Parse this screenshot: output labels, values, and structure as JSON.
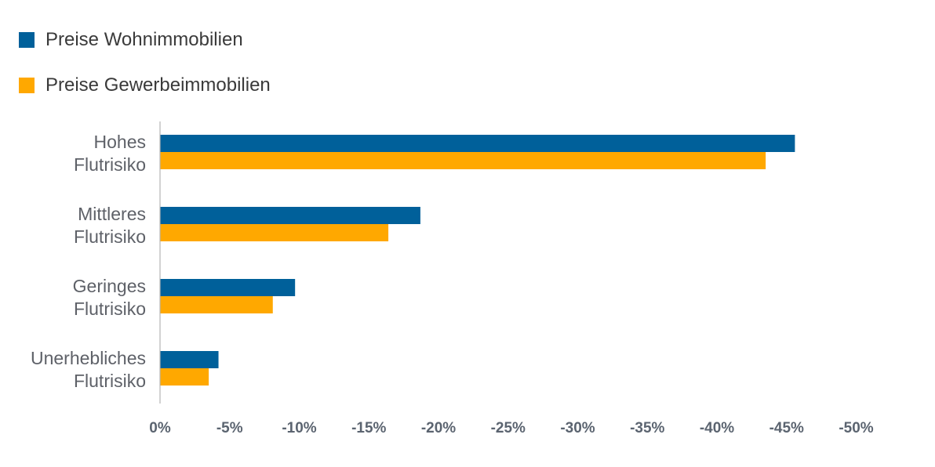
{
  "chart_data": {
    "type": "bar",
    "orientation": "horizontal",
    "categories": [
      [
        "Hohes",
        "Flutrisiko"
      ],
      [
        "Mittleres",
        "Flutrisiko"
      ],
      [
        "Geringes",
        "Flutrisiko"
      ],
      [
        "Unerhebliches",
        "Flutrisiko"
      ]
    ],
    "series": [
      {
        "name": "Preise Wohnimmobilien",
        "color": "#00609a",
        "values": [
          -45.6,
          -18.7,
          -9.7,
          -4.2
        ]
      },
      {
        "name": "Preise Gewerbeimmobilien",
        "color": "#ffa800",
        "values": [
          -43.5,
          -16.4,
          -8.1,
          -3.5
        ]
      }
    ],
    "x_ticks": [
      "0%",
      "-5%",
      "-10%",
      "-15%",
      "-20%",
      "-25%",
      "-30%",
      "-35%",
      "-40%",
      "-45%",
      "-50%"
    ],
    "x_tick_values": [
      0,
      -5,
      -10,
      -15,
      -20,
      -25,
      -30,
      -35,
      -40,
      -45,
      -50
    ],
    "xlim": [
      0,
      -50
    ],
    "legend_position": "top-left",
    "grid": false
  }
}
